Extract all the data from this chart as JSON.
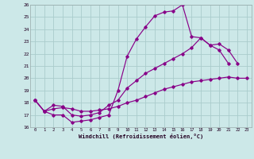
{
  "xlabel": "Windchill (Refroidissement éolien,°C)",
  "bg_color": "#cce8e8",
  "grid_color": "#aacccc",
  "line_color": "#880088",
  "xlim": [
    -0.5,
    23.5
  ],
  "ylim": [
    16,
    26
  ],
  "xticks": [
    0,
    1,
    2,
    3,
    4,
    5,
    6,
    7,
    8,
    9,
    10,
    11,
    12,
    13,
    14,
    15,
    16,
    17,
    18,
    19,
    20,
    21,
    22,
    23
  ],
  "yticks": [
    16,
    17,
    18,
    19,
    20,
    21,
    22,
    23,
    24,
    25,
    26
  ],
  "line1_x": [
    0,
    1,
    2,
    3,
    4,
    5,
    6,
    7,
    8,
    9,
    10,
    11,
    12,
    13,
    14,
    15,
    16,
    17,
    18,
    19,
    20,
    21
  ],
  "line1_y": [
    18.2,
    17.3,
    17.0,
    17.0,
    16.4,
    16.5,
    16.6,
    16.8,
    17.0,
    19.0,
    21.8,
    23.2,
    24.2,
    25.1,
    25.4,
    25.5,
    26.0,
    23.4,
    23.3,
    22.7,
    22.3,
    21.2
  ],
  "line2_x": [
    0,
    1,
    2,
    3,
    4,
    5,
    6,
    7,
    8,
    9,
    10,
    11,
    12,
    13,
    14,
    15,
    16,
    17,
    18,
    19,
    20,
    21,
    22,
    23
  ],
  "line2_y": [
    18.2,
    17.3,
    17.5,
    17.6,
    17.5,
    17.3,
    17.3,
    17.4,
    17.5,
    17.7,
    18.0,
    18.2,
    18.5,
    18.8,
    19.1,
    19.3,
    19.5,
    19.7,
    19.8,
    19.9,
    20.0,
    20.1,
    20.0,
    20.0
  ],
  "line3_x": [
    0,
    1,
    2,
    3,
    4,
    5,
    6,
    7,
    8,
    9,
    10,
    11,
    12,
    13,
    14,
    15,
    16,
    17,
    18,
    19,
    20,
    21,
    22
  ],
  "line3_y": [
    18.2,
    17.3,
    17.8,
    17.7,
    17.0,
    16.9,
    17.0,
    17.2,
    17.8,
    18.2,
    19.2,
    19.8,
    20.4,
    20.8,
    21.2,
    21.6,
    22.0,
    22.5,
    23.3,
    22.7,
    22.8,
    22.3,
    21.2
  ]
}
